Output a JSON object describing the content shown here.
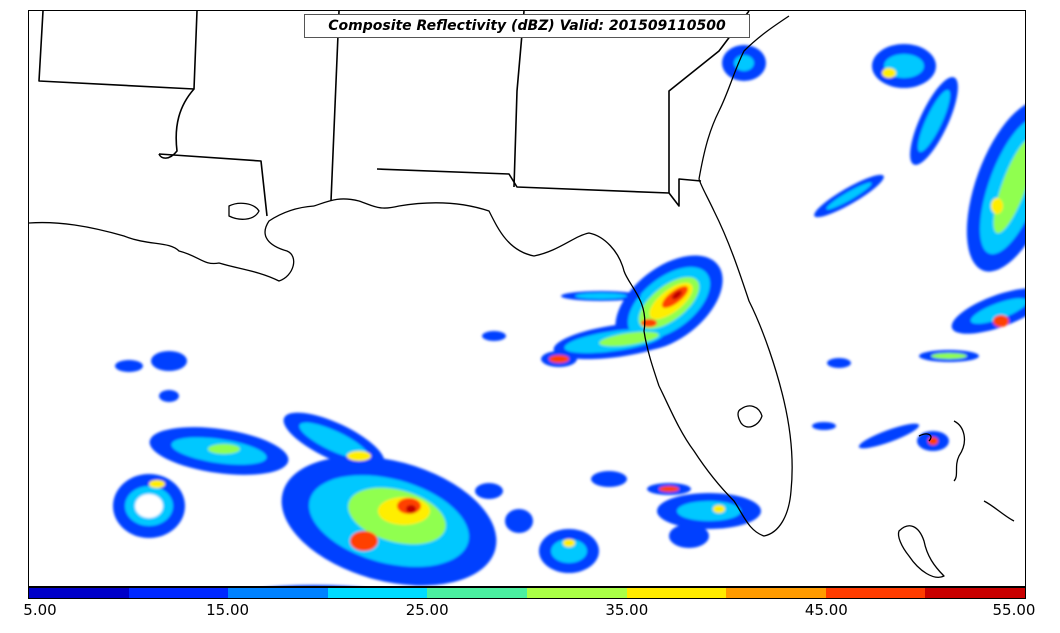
{
  "map": {
    "title": "Composite Reflectivity (dBZ) Valid: 201509110500",
    "region": "US Gulf Coast and Florida"
  },
  "colorbar": {
    "min": 5,
    "max": 55,
    "ticks": [
      "5.00",
      "15.00",
      "25.00",
      "35.00",
      "45.00",
      "55.00"
    ],
    "colors": [
      "#0000c8",
      "#0028ff",
      "#0082ff",
      "#00dcff",
      "#4bf0a0",
      "#aaff46",
      "#ffeb00",
      "#ff9b00",
      "#ff3c00",
      "#c80000"
    ]
  },
  "colors": {
    "weak": "#0040ff",
    "light": "#00c8ff",
    "moderate": "#90ff50",
    "strong": "#ffee00",
    "heavy": "#ff4000",
    "extreme": "#c00000",
    "coastline": "#000000"
  }
}
